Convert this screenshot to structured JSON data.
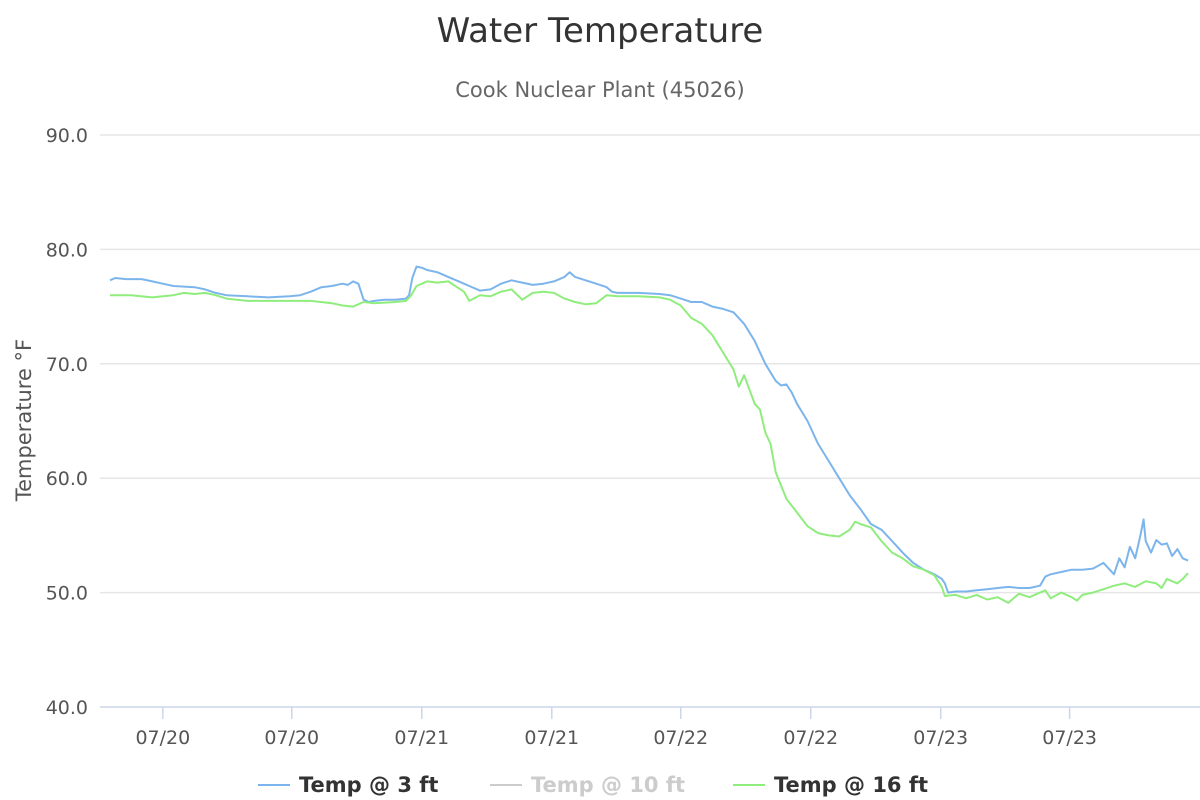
{
  "chart_data": {
    "type": "line",
    "title": "Water Temperature",
    "subtitle": "Cook Nuclear Plant (45026)",
    "ylabel": "Temperature °F",
    "ylim": [
      40,
      90
    ],
    "yticks": [
      "40.0",
      "50.0",
      "60.0",
      "70.0",
      "80.0",
      "90.0"
    ],
    "xlim": [
      0,
      100
    ],
    "xticks": [
      {
        "x": 5,
        "label": "07/20"
      },
      {
        "x": 17.2,
        "label": "07/20"
      },
      {
        "x": 29.5,
        "label": "07/21"
      },
      {
        "x": 41.8,
        "label": "07/21"
      },
      {
        "x": 54,
        "label": "07/22"
      },
      {
        "x": 66.3,
        "label": "07/22"
      },
      {
        "x": 78.6,
        "label": "07/23"
      },
      {
        "x": 90.8,
        "label": "07/23"
      }
    ],
    "grid": true,
    "legend_position": "bottom-center",
    "series": [
      {
        "name": "Temp @ 3 ft",
        "color": "#7cb5ec",
        "visible": true,
        "points": [
          [
            0,
            77.3
          ],
          [
            0.5,
            77.5
          ],
          [
            1.5,
            77.4
          ],
          [
            3,
            77.4
          ],
          [
            4,
            77.2
          ],
          [
            5,
            77.0
          ],
          [
            6,
            76.8
          ],
          [
            8,
            76.7
          ],
          [
            9,
            76.5
          ],
          [
            10,
            76.2
          ],
          [
            11,
            76.0
          ],
          [
            13,
            75.9
          ],
          [
            15,
            75.8
          ],
          [
            17,
            75.9
          ],
          [
            18,
            76.0
          ],
          [
            19,
            76.3
          ],
          [
            20,
            76.7
          ],
          [
            21,
            76.8
          ],
          [
            22,
            77.0
          ],
          [
            22.5,
            76.9
          ],
          [
            23,
            77.2
          ],
          [
            23.5,
            77.0
          ],
          [
            24,
            75.6
          ],
          [
            24.5,
            75.4
          ],
          [
            25,
            75.5
          ],
          [
            26,
            75.6
          ],
          [
            27,
            75.6
          ],
          [
            28,
            75.7
          ],
          [
            28.3,
            76.0
          ],
          [
            28.6,
            77.5
          ],
          [
            29,
            78.5
          ],
          [
            29.5,
            78.4
          ],
          [
            30,
            78.2
          ],
          [
            31,
            78.0
          ],
          [
            32,
            77.6
          ],
          [
            33,
            77.2
          ],
          [
            34,
            76.8
          ],
          [
            35,
            76.4
          ],
          [
            36,
            76.5
          ],
          [
            37,
            77.0
          ],
          [
            38,
            77.3
          ],
          [
            39,
            77.1
          ],
          [
            40,
            76.9
          ],
          [
            41,
            77.0
          ],
          [
            42,
            77.2
          ],
          [
            43,
            77.6
          ],
          [
            43.5,
            78.0
          ],
          [
            44,
            77.6
          ],
          [
            45,
            77.3
          ],
          [
            46,
            77.0
          ],
          [
            47,
            76.7
          ],
          [
            47.5,
            76.3
          ],
          [
            48,
            76.2
          ],
          [
            50,
            76.2
          ],
          [
            52,
            76.1
          ],
          [
            53,
            76.0
          ],
          [
            54,
            75.7
          ],
          [
            55,
            75.4
          ],
          [
            56,
            75.4
          ],
          [
            57,
            75.0
          ],
          [
            58,
            74.8
          ],
          [
            59,
            74.5
          ],
          [
            60,
            73.5
          ],
          [
            61,
            72.0
          ],
          [
            62,
            70.0
          ],
          [
            63,
            68.5
          ],
          [
            63.5,
            68.1
          ],
          [
            64,
            68.2
          ],
          [
            64.5,
            67.5
          ],
          [
            65,
            66.5
          ],
          [
            66,
            65.0
          ],
          [
            67,
            63.0
          ],
          [
            68,
            61.5
          ],
          [
            69,
            60.0
          ],
          [
            70,
            58.5
          ],
          [
            71,
            57.3
          ],
          [
            72,
            56.0
          ],
          [
            73,
            55.5
          ],
          [
            74,
            54.5
          ],
          [
            75,
            53.5
          ],
          [
            76,
            52.6
          ],
          [
            77,
            52.0
          ],
          [
            78,
            51.6
          ],
          [
            78.7,
            51.2
          ],
          [
            79,
            50.8
          ],
          [
            79.3,
            50.0
          ],
          [
            80,
            50.1
          ],
          [
            81,
            50.1
          ],
          [
            82,
            50.2
          ],
          [
            83,
            50.3
          ],
          [
            84,
            50.4
          ],
          [
            85,
            50.5
          ],
          [
            86,
            50.4
          ],
          [
            87,
            50.4
          ],
          [
            88,
            50.6
          ],
          [
            88.5,
            51.4
          ],
          [
            89,
            51.6
          ],
          [
            90,
            51.8
          ],
          [
            91,
            52.0
          ],
          [
            92,
            52.0
          ],
          [
            93,
            52.1
          ],
          [
            94,
            52.6
          ],
          [
            95,
            51.6
          ],
          [
            95.5,
            53.0
          ],
          [
            96,
            52.2
          ],
          [
            96.5,
            54.0
          ],
          [
            97,
            53.0
          ],
          [
            97.5,
            55.0
          ],
          [
            97.8,
            56.4
          ],
          [
            98,
            54.5
          ],
          [
            98.5,
            53.5
          ],
          [
            99,
            54.6
          ],
          [
            99.5,
            54.2
          ],
          [
            100,
            54.3
          ],
          [
            100.5,
            53.2
          ],
          [
            101,
            53.8
          ],
          [
            101.5,
            53.0
          ],
          [
            102,
            52.8
          ]
        ]
      },
      {
        "name": "Temp @ 10 ft",
        "color": "#cccccc",
        "visible": false,
        "points": []
      },
      {
        "name": "Temp @ 16 ft",
        "color": "#90ed7d",
        "visible": true,
        "points": [
          [
            0,
            76.0
          ],
          [
            2,
            76.0
          ],
          [
            4,
            75.8
          ],
          [
            5,
            75.9
          ],
          [
            6,
            76.0
          ],
          [
            7,
            76.2
          ],
          [
            8,
            76.1
          ],
          [
            9,
            76.2
          ],
          [
            10,
            76.0
          ],
          [
            11,
            75.7
          ],
          [
            13,
            75.5
          ],
          [
            15,
            75.5
          ],
          [
            17,
            75.5
          ],
          [
            19,
            75.5
          ],
          [
            21,
            75.3
          ],
          [
            22,
            75.1
          ],
          [
            23,
            75.0
          ],
          [
            24,
            75.4
          ],
          [
            25,
            75.3
          ],
          [
            27,
            75.4
          ],
          [
            28,
            75.5
          ],
          [
            28.5,
            76.0
          ],
          [
            29,
            76.8
          ],
          [
            30,
            77.2
          ],
          [
            31,
            77.1
          ],
          [
            32,
            77.2
          ],
          [
            33,
            76.6
          ],
          [
            33.5,
            76.3
          ],
          [
            34,
            75.5
          ],
          [
            35,
            76.0
          ],
          [
            36,
            75.9
          ],
          [
            37,
            76.3
          ],
          [
            38,
            76.5
          ],
          [
            39,
            75.6
          ],
          [
            40,
            76.2
          ],
          [
            41,
            76.3
          ],
          [
            42,
            76.2
          ],
          [
            43,
            75.7
          ],
          [
            44,
            75.4
          ],
          [
            45,
            75.2
          ],
          [
            46,
            75.3
          ],
          [
            47,
            76.0
          ],
          [
            48,
            75.9
          ],
          [
            50,
            75.9
          ],
          [
            52,
            75.8
          ],
          [
            53,
            75.6
          ],
          [
            54,
            75.1
          ],
          [
            55,
            74.0
          ],
          [
            56,
            73.5
          ],
          [
            57,
            72.5
          ],
          [
            58,
            71.0
          ],
          [
            59,
            69.5
          ],
          [
            59.5,
            68.0
          ],
          [
            60,
            69.0
          ],
          [
            61,
            66.5
          ],
          [
            61.5,
            66.0
          ],
          [
            62,
            64.0
          ],
          [
            62.5,
            63.0
          ],
          [
            63,
            60.5
          ],
          [
            64,
            58.2
          ],
          [
            65,
            57.0
          ],
          [
            66,
            55.8
          ],
          [
            67,
            55.2
          ],
          [
            68,
            55.0
          ],
          [
            69,
            54.9
          ],
          [
            70,
            55.5
          ],
          [
            70.5,
            56.2
          ],
          [
            71,
            56.0
          ],
          [
            72,
            55.7
          ],
          [
            73,
            54.5
          ],
          [
            74,
            53.5
          ],
          [
            75,
            53.0
          ],
          [
            76,
            52.3
          ],
          [
            77,
            52.0
          ],
          [
            78,
            51.5
          ],
          [
            78.7,
            50.5
          ],
          [
            79,
            49.7
          ],
          [
            80,
            49.8
          ],
          [
            81,
            49.5
          ],
          [
            82,
            49.8
          ],
          [
            83,
            49.4
          ],
          [
            84,
            49.6
          ],
          [
            85,
            49.1
          ],
          [
            86,
            49.9
          ],
          [
            87,
            49.6
          ],
          [
            88,
            50.0
          ],
          [
            88.5,
            50.2
          ],
          [
            89,
            49.5
          ],
          [
            90,
            50.0
          ],
          [
            91,
            49.6
          ],
          [
            91.5,
            49.3
          ],
          [
            92,
            49.8
          ],
          [
            93,
            50.0
          ],
          [
            94,
            50.3
          ],
          [
            95,
            50.6
          ],
          [
            96,
            50.8
          ],
          [
            97,
            50.5
          ],
          [
            98,
            51.0
          ],
          [
            99,
            50.8
          ],
          [
            99.5,
            50.4
          ],
          [
            100,
            51.2
          ],
          [
            101,
            50.8
          ],
          [
            101.5,
            51.2
          ],
          [
            102,
            51.7
          ]
        ]
      }
    ]
  }
}
